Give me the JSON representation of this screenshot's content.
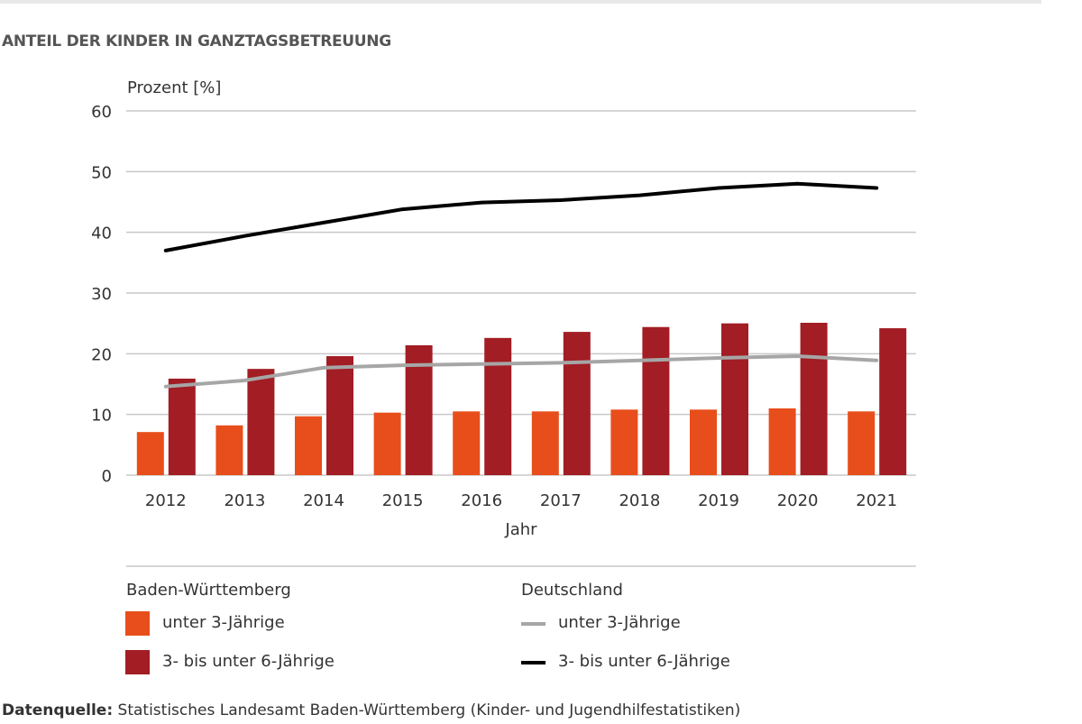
{
  "title": "ANTEIL DER KINDER IN GANZTAGSBETREUUNG",
  "source": {
    "label": "Datenquelle:",
    "text": " Statistisches Landesamt Baden-Württemberg (Kinder- und Jugendhilfestatistiken)"
  },
  "chart_data": {
    "type": "bar+line",
    "ylabel": "Prozent [%]",
    "xlabel": "Jahr",
    "ylim": [
      0,
      60
    ],
    "yticks": [
      0,
      10,
      20,
      30,
      40,
      50,
      60
    ],
    "grid": true,
    "categories": [
      "2012",
      "2013",
      "2014",
      "2015",
      "2016",
      "2017",
      "2018",
      "2019",
      "2020",
      "2021"
    ],
    "legend_groups": [
      "Baden-Württemberg",
      "Deutschland"
    ],
    "series": [
      {
        "name": "unter 3-Jährige",
        "group": "Baden-Württemberg",
        "kind": "bar",
        "color": "#e84e1b",
        "values": [
          7.1,
          8.2,
          9.7,
          10.3,
          10.5,
          10.5,
          10.8,
          10.8,
          11.0,
          10.5
        ]
      },
      {
        "name": "3- bis unter 6-Jährige",
        "group": "Baden-Württemberg",
        "kind": "bar",
        "color": "#a21d24",
        "values": [
          15.9,
          17.5,
          19.6,
          21.4,
          22.6,
          23.6,
          24.4,
          25.0,
          25.1,
          24.2
        ]
      },
      {
        "name": "unter 3-Jährige",
        "group": "Deutschland",
        "kind": "line",
        "color": "#a6a6a6",
        "values": [
          14.6,
          15.6,
          17.7,
          18.1,
          18.3,
          18.5,
          18.9,
          19.3,
          19.6,
          18.9
        ]
      },
      {
        "name": "3- bis unter 6-Jährige",
        "group": "Deutschland",
        "kind": "line",
        "color": "#000000",
        "values": [
          37.0,
          39.4,
          41.6,
          43.8,
          44.9,
          45.3,
          46.1,
          47.3,
          48.0,
          47.3
        ]
      }
    ]
  }
}
